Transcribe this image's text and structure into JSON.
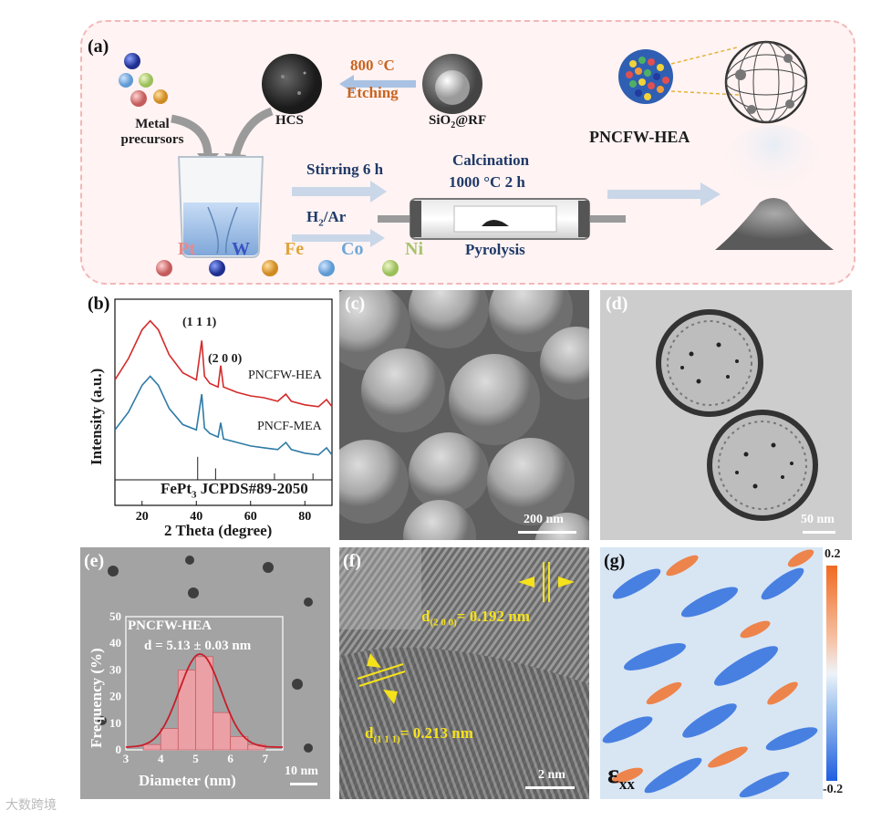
{
  "panel_a": {
    "label": "(a)",
    "metal_precursors": [
      "Metal",
      "precursors"
    ],
    "hcs": "HCS",
    "sio2rf": "SiO",
    "sio2rf_sub": "2",
    "sio2rf_tail": "@RF",
    "temp": "800 °C",
    "etching": "Etching",
    "stirring": "Stirring 6 h",
    "h2ar_a": "H",
    "h2ar_sub": "2",
    "h2ar_b": "/Ar",
    "calcination": "Calcination",
    "calc_cond": "1000 °C 2 h",
    "pyrolysis": "Pyrolysis",
    "product": "PNCFW-HEA",
    "legend": [
      {
        "name": "Pt",
        "color": "#d97b7b",
        "text_color": "#e88a8a"
      },
      {
        "name": "W",
        "color": "#2d3f9e",
        "text_color": "#3b52c2"
      },
      {
        "name": "Fe",
        "color": "#e0a53a",
        "text_color": "#e0a53a"
      },
      {
        "name": "Co",
        "color": "#6ea7d8",
        "text_color": "#6ea7d8"
      },
      {
        "name": "Ni",
        "color": "#b5cf7d",
        "text_color": "#a7c36a"
      }
    ]
  },
  "panel_b": {
    "label": "(b)",
    "ylabel": "Intensity (a.u.)",
    "xlabel": "2 Theta (degree)",
    "peak1": "(1 1 1)",
    "peak2": "(2 0 0)",
    "ref_a": "FePt",
    "ref_sub": "3",
    "ref_b": " JCPDS#89-2050"
  },
  "panel_c": {
    "label": "(c)",
    "scale": "200 nm"
  },
  "panel_d": {
    "label": "(d)",
    "scale": "50 nm"
  },
  "panel_e": {
    "label": "(e)",
    "scale": "10 nm",
    "inset_title": "PNCFW-HEA",
    "inset_d": "d = 5.13 ± 0.03 nm"
  },
  "panel_f": {
    "label": "(f)",
    "scale": "2 nm",
    "d200_a": "d",
    "d200_sub": "(2 0 0)",
    "d200_b": "= 0.192 nm",
    "d111_a": "d",
    "d111_sub": "(1 1 1)",
    "d111_b": "= 0.213 nm"
  },
  "panel_g": {
    "label": "(g)",
    "cmax": "0.2",
    "cmin": "-0.2",
    "eps": "ε",
    "eps_sub": "xx"
  },
  "watermark": "大数跨境",
  "chart_data": [
    {
      "type": "line",
      "title": "",
      "xlabel": "2 Theta (degree)",
      "ylabel": "Intensity (a.u.)",
      "xlim": [
        10,
        90
      ],
      "xticks": [
        20,
        40,
        60,
        80
      ],
      "series": [
        {
          "name": "PNCFW-HEA",
          "color": "#d42a2a",
          "x": [
            10,
            15,
            20,
            23,
            26,
            30,
            35,
            40,
            42,
            43,
            45,
            48,
            49,
            50,
            55,
            60,
            65,
            70,
            73,
            75,
            80,
            85,
            88,
            90
          ],
          "y": [
            0.6,
            0.72,
            0.88,
            0.93,
            0.88,
            0.74,
            0.64,
            0.6,
            0.82,
            0.62,
            0.58,
            0.56,
            0.68,
            0.56,
            0.53,
            0.51,
            0.5,
            0.48,
            0.52,
            0.48,
            0.46,
            0.45,
            0.49,
            0.45
          ]
        },
        {
          "name": "PNCF-MEA",
          "color": "#2d7aa6",
          "x": [
            10,
            15,
            20,
            23,
            26,
            30,
            35,
            40,
            42,
            43,
            45,
            48,
            49,
            50,
            55,
            60,
            65,
            70,
            73,
            75,
            80,
            85,
            88,
            90
          ],
          "y": [
            0.32,
            0.42,
            0.57,
            0.62,
            0.57,
            0.44,
            0.35,
            0.32,
            0.52,
            0.33,
            0.3,
            0.28,
            0.36,
            0.27,
            0.25,
            0.23,
            0.22,
            0.21,
            0.25,
            0.21,
            0.19,
            0.18,
            0.22,
            0.18
          ]
        }
      ],
      "reference_lines": {
        "name": "FePt3 JCPDS#89-2050",
        "x": [
          40.5,
          47.1,
          68.8,
          83.0
        ],
        "h": [
          0.18,
          0.09,
          0.05,
          0.05
        ]
      }
    },
    {
      "type": "bar",
      "title": "PNCFW-HEA",
      "xlabel": "Diameter (nm)",
      "ylabel": "Frequency (%)",
      "xlim": [
        3,
        7.5
      ],
      "ylim": [
        0,
        50
      ],
      "xticks": [
        3,
        4,
        5,
        6,
        7
      ],
      "yticks": [
        0,
        10,
        20,
        30,
        40,
        50
      ],
      "categories": [
        3.75,
        4.25,
        4.75,
        5.25,
        5.75,
        6.25,
        6.75
      ],
      "values": [
        2,
        8,
        30,
        35,
        14,
        5,
        2
      ],
      "fit": "gaussian",
      "fit_mean": 5.13
    }
  ]
}
